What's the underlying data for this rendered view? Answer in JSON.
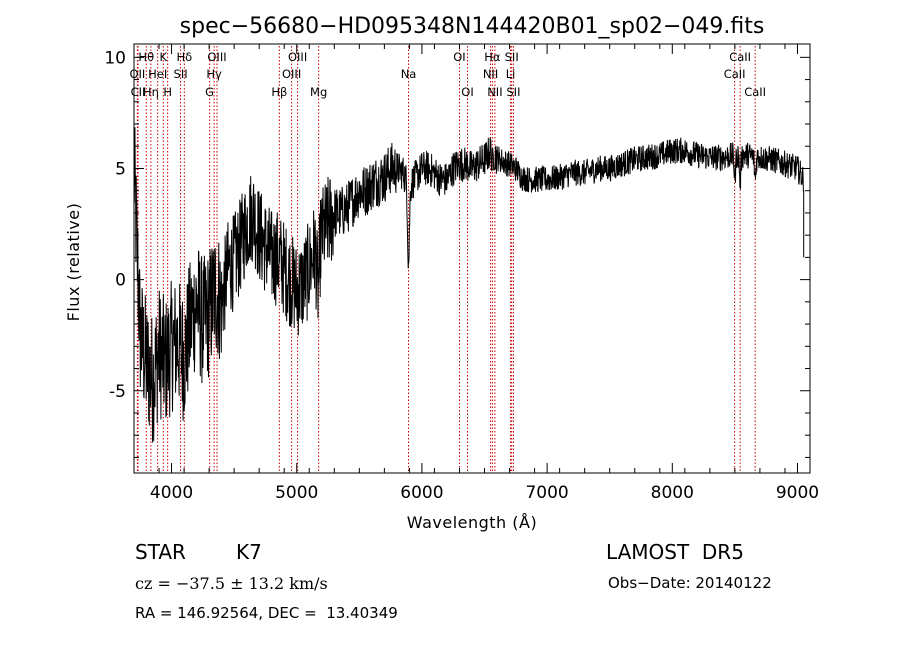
{
  "chart_data": {
    "type": "line",
    "title": "spec−56680−HD095348N144420B01_sp02−049.fits",
    "xlabel": "Wavelength (Å)",
    "ylabel": "Flux (relative)",
    "xlim": [
      3700,
      9100
    ],
    "ylim": [
      -8.7,
      10.6
    ],
    "x_ticks": [
      4000,
      5000,
      6000,
      7000,
      8000,
      9000
    ],
    "y_ticks": [
      -5,
      0,
      5,
      10
    ],
    "grid": false,
    "series": [
      {
        "x": [
          3700,
          3750,
          3800,
          3850,
          3900,
          3950,
          4000,
          4050,
          4100,
          4150,
          4200,
          4250,
          4300,
          4350,
          4400,
          4450,
          4500,
          4550,
          4600,
          4650,
          4700,
          4750,
          4800,
          4850,
          4900,
          4950,
          5000,
          5050,
          5100,
          5150,
          5200,
          5250,
          5300,
          5350,
          5400,
          5450,
          5500,
          5550,
          5600,
          5650,
          5700,
          5750,
          5800,
          5850,
          5900,
          5950,
          6000,
          6050,
          6100,
          6150,
          6200,
          6250,
          6300,
          6350,
          6400,
          6450,
          6500,
          6550,
          6600,
          6650,
          6700,
          6750,
          6800,
          6850,
          6900,
          6950,
          7000,
          7100,
          7200,
          7300,
          7400,
          7500,
          7600,
          7700,
          7800,
          7900,
          8000,
          8100,
          8200,
          8300,
          8400,
          8500,
          8600,
          8700,
          8800,
          8900,
          9000,
          9050
        ],
        "y": [
          5.0,
          -2.5,
          -3.8,
          -4.5,
          -3.2,
          -3.8,
          -3.0,
          -2.8,
          -3.5,
          -2.0,
          -1.0,
          -2.0,
          -1.5,
          -0.5,
          -1.0,
          0.5,
          0.8,
          1.5,
          2.5,
          3.0,
          2.0,
          1.5,
          1.0,
          1.0,
          0.5,
          0.0,
          -0.5,
          -0.2,
          0.5,
          1.5,
          2.0,
          2.5,
          3.0,
          3.0,
          3.2,
          3.6,
          4.0,
          4.0,
          4.3,
          4.5,
          4.6,
          5.0,
          5.0,
          4.8,
          4.2,
          4.6,
          5.0,
          5.0,
          4.8,
          4.5,
          4.5,
          5.0,
          5.2,
          5.2,
          5.0,
          5.2,
          5.4,
          5.8,
          5.5,
          5.3,
          5.2,
          5.0,
          4.6,
          4.5,
          4.5,
          4.5,
          4.5,
          4.6,
          4.8,
          4.8,
          5.0,
          5.0,
          5.2,
          5.4,
          5.5,
          5.6,
          5.8,
          5.8,
          5.6,
          5.5,
          5.5,
          5.6,
          5.6,
          5.5,
          5.4,
          5.2,
          5.0,
          4.5
        ]
      }
    ],
    "spectral_lines": [
      {
        "label": "Hθ",
        "x": 3798,
        "row": 0
      },
      {
        "label": "OII",
        "x": 3727,
        "row": 1
      },
      {
        "label": "CII",
        "x": 3732,
        "row": 2
      },
      {
        "label": "Hη",
        "x": 3835,
        "row": 2
      },
      {
        "label": "K",
        "x": 3934,
        "row": 0
      },
      {
        "label": "HeI",
        "x": 3889,
        "row": 1
      },
      {
        "label": "H",
        "x": 3969,
        "row": 2
      },
      {
        "label": "Hδ",
        "x": 4102,
        "row": 0
      },
      {
        "label": "SII",
        "x": 4072,
        "row": 1
      },
      {
        "label": "OIII",
        "x": 4363,
        "row": 0
      },
      {
        "label": "Hγ",
        "x": 4340,
        "row": 1
      },
      {
        "label": "G",
        "x": 4304,
        "row": 2
      },
      {
        "label": "OIII",
        "x": 5007,
        "row": 0
      },
      {
        "label": "OIII",
        "x": 4959,
        "row": 1
      },
      {
        "label": "Hβ",
        "x": 4861,
        "row": 2
      },
      {
        "label": "Mg",
        "x": 5175,
        "row": 2
      },
      {
        "label": "Na",
        "x": 5893,
        "row": 1
      },
      {
        "label": "OI",
        "x": 6300,
        "row": 0
      },
      {
        "label": "OI",
        "x": 6364,
        "row": 2
      },
      {
        "label": "Hα",
        "x": 6563,
        "row": 0
      },
      {
        "label": "SII",
        "x": 6717,
        "row": 0
      },
      {
        "label": "NII",
        "x": 6548,
        "row": 1
      },
      {
        "label": "Li",
        "x": 6708,
        "row": 1
      },
      {
        "label": "NII",
        "x": 6583,
        "row": 2
      },
      {
        "label": "SII",
        "x": 6731,
        "row": 2
      },
      {
        "label": "CaII",
        "x": 8542,
        "row": 0
      },
      {
        "label": "CaII",
        "x": 8498,
        "row": 1
      },
      {
        "label": "CaII",
        "x": 8662,
        "row": 2
      }
    ],
    "line_color": "#000000",
    "marker_color": "#cc0000"
  },
  "info": {
    "object_class": "STAR",
    "subclass": "K7",
    "survey": "LAMOST  DR5",
    "velocity": "cz = −37.5 ± 13.2 km/s",
    "obs_date": "Obs−Date: 20140122",
    "coords": "RA = 146.92564, DEC =  13.40349"
  }
}
